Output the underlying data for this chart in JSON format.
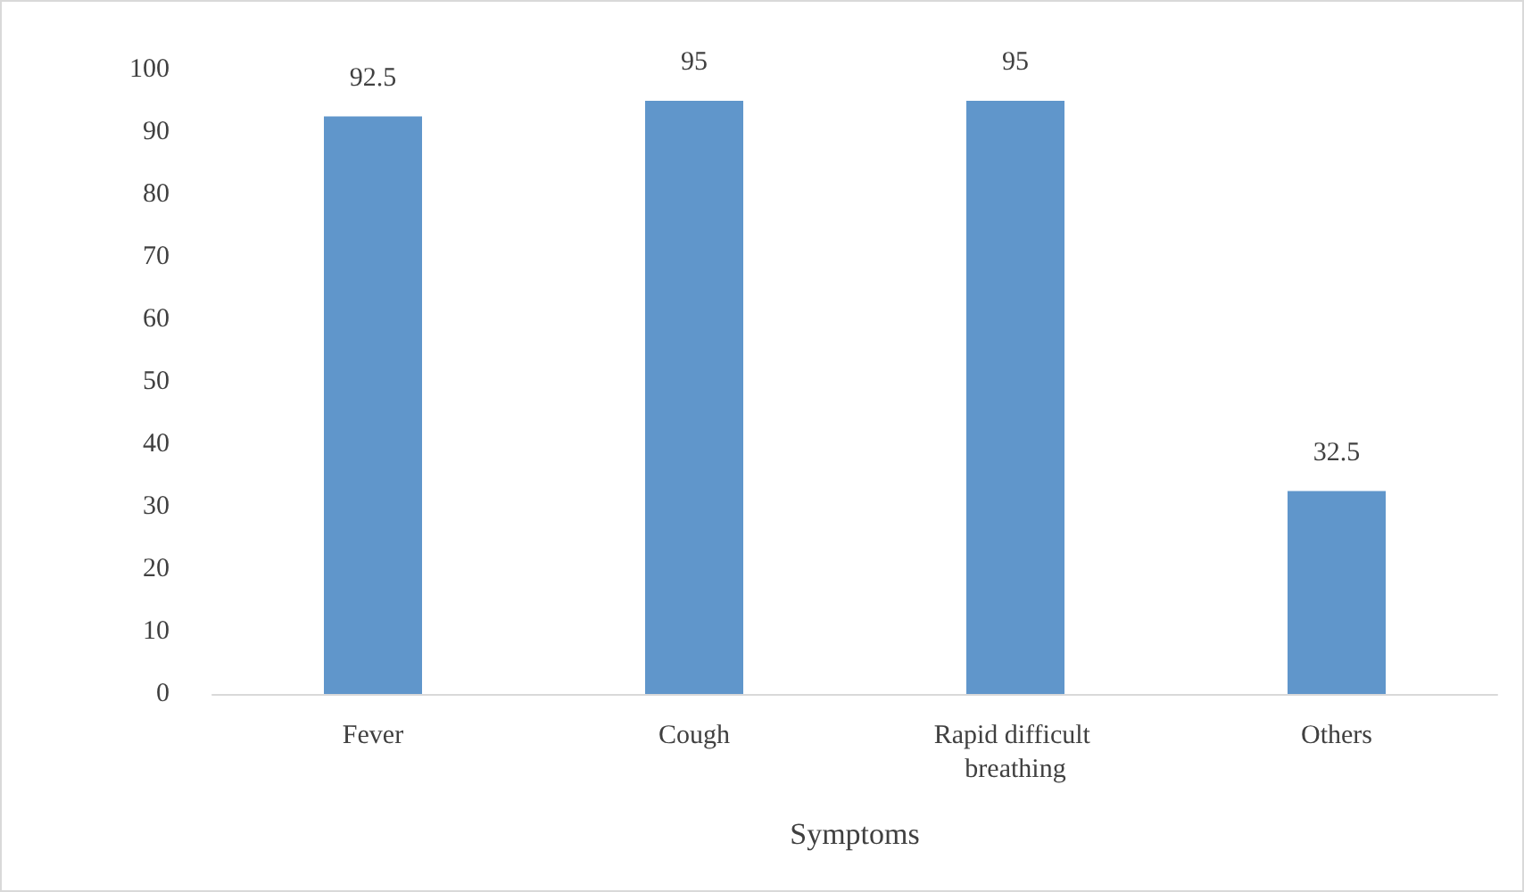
{
  "chart_data": {
    "type": "bar",
    "xlabel": "Symptoms",
    "categories": [
      "Fever",
      "Cough",
      "Rapid difficult breathing",
      "Others"
    ],
    "values": [
      92.5,
      95,
      95,
      32.5
    ],
    "color": "#6096cb",
    "ylim": [
      0,
      100
    ],
    "yticks": [
      0,
      10,
      20,
      30,
      40,
      50,
      60,
      70,
      80,
      90,
      100
    ],
    "grid": false,
    "data_labels": true
  }
}
